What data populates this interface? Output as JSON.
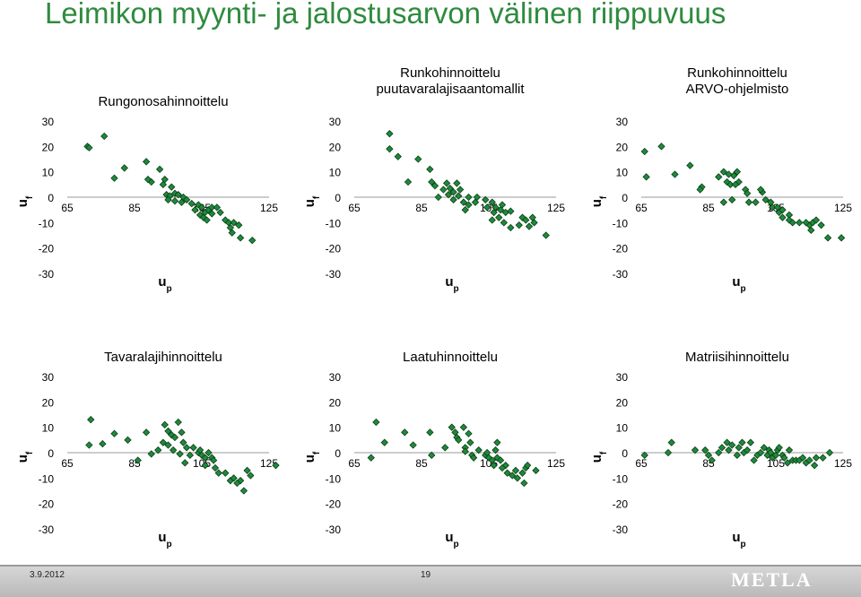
{
  "slide": {
    "title": "Leimikon myynti- ja jalostusarvon välinen riippuvuus"
  },
  "footer": {
    "date": "3.9.2012",
    "page": "19",
    "logo": "METLA"
  },
  "colors": {
    "title": "#2e8b3e",
    "marker_fill": "#1e8a3a",
    "marker_edge": "#0c3d18"
  },
  "chart_data": [
    {
      "type": "scatter",
      "title": [
        "Rungonosahinnoittelu"
      ],
      "xlabel": "u",
      "xlabel_sub": "p",
      "ylabel": "u",
      "ylabel_sub": "f",
      "xticks": [
        65,
        85,
        105,
        125
      ],
      "yticks": [
        30,
        20,
        10,
        0,
        -10,
        -20,
        -30
      ],
      "xlim": [
        65,
        125
      ],
      "ylim": [
        -30,
        30
      ],
      "grid": false,
      "points": [
        [
          71,
          20
        ],
        [
          71.5,
          19.5
        ],
        [
          76,
          24
        ],
        [
          79,
          7.5
        ],
        [
          82,
          11.5
        ],
        [
          88.5,
          14
        ],
        [
          90,
          6
        ],
        [
          89,
          7
        ],
        [
          92.5,
          11
        ],
        [
          94,
          7
        ],
        [
          93.5,
          5
        ],
        [
          96,
          4
        ],
        [
          94.5,
          1
        ],
        [
          95.5,
          0.5
        ],
        [
          97,
          1.5
        ],
        [
          98,
          1
        ],
        [
          95,
          -1
        ],
        [
          97,
          -1.5
        ],
        [
          99,
          -2
        ],
        [
          99.5,
          0
        ],
        [
          100.5,
          -1
        ],
        [
          102,
          -2.5
        ],
        [
          104,
          -3
        ],
        [
          105,
          -4
        ],
        [
          103,
          -5
        ],
        [
          106,
          -6
        ],
        [
          107,
          -5
        ],
        [
          108,
          -4
        ],
        [
          109.5,
          -4
        ],
        [
          104.5,
          -7
        ],
        [
          105.5,
          -8
        ],
        [
          106.5,
          -9
        ],
        [
          108,
          -6.5
        ],
        [
          110.5,
          -6
        ],
        [
          112,
          -9
        ],
        [
          113,
          -10
        ],
        [
          113.5,
          -12
        ],
        [
          114.5,
          -10
        ],
        [
          116,
          -11
        ],
        [
          114,
          -14
        ],
        [
          116.5,
          -16
        ],
        [
          120,
          -17
        ]
      ]
    },
    {
      "type": "scatter",
      "title": [
        "Runkohinnoittelu",
        "puutavaralajisaantomallit"
      ],
      "xlabel": "u",
      "xlabel_sub": "p",
      "ylabel": "u",
      "ylabel_sub": "f",
      "xticks": [
        65,
        85,
        105,
        125
      ],
      "yticks": [
        30,
        20,
        10,
        0,
        -10,
        -20,
        -30
      ],
      "xlim": [
        65,
        125
      ],
      "ylim": [
        -30,
        30
      ],
      "grid": false,
      "points": [
        [
          75.5,
          25
        ],
        [
          75.5,
          19
        ],
        [
          78,
          16
        ],
        [
          81,
          6
        ],
        [
          84,
          15
        ],
        [
          87.5,
          11
        ],
        [
          88,
          6
        ],
        [
          89,
          4.5
        ],
        [
          90,
          0
        ],
        [
          91.5,
          3
        ],
        [
          92.5,
          5.5
        ],
        [
          93.5,
          3.5
        ],
        [
          94.5,
          2
        ],
        [
          93,
          1
        ],
        [
          96,
          0.5
        ],
        [
          94.5,
          -1
        ],
        [
          95.5,
          5.5
        ],
        [
          96.5,
          3
        ],
        [
          97.5,
          -2
        ],
        [
          99,
          -3
        ],
        [
          99,
          0
        ],
        [
          98,
          -5
        ],
        [
          101,
          -2
        ],
        [
          101.5,
          0
        ],
        [
          104,
          -1
        ],
        [
          104.5,
          -4
        ],
        [
          106,
          -2
        ],
        [
          107,
          -4
        ],
        [
          106.5,
          -6
        ],
        [
          108,
          -8
        ],
        [
          108.5,
          -5
        ],
        [
          109,
          -3
        ],
        [
          110,
          -6
        ],
        [
          111.5,
          -5.5
        ],
        [
          109.5,
          -10
        ],
        [
          106,
          -9
        ],
        [
          111.5,
          -12
        ],
        [
          115,
          -8
        ],
        [
          116,
          -9
        ],
        [
          117,
          -11.5
        ],
        [
          118.5,
          -10
        ],
        [
          118,
          -8
        ],
        [
          114,
          -11
        ],
        [
          122,
          -15
        ]
      ]
    },
    {
      "type": "scatter",
      "title": [
        "Runkohinnoittelu",
        "ARVO-ohjelmisto"
      ],
      "xlabel": "u",
      "xlabel_sub": "p",
      "ylabel": "u",
      "ylabel_sub": "f",
      "xticks": [
        65,
        85,
        105,
        125
      ],
      "yticks": [
        30,
        20,
        10,
        0,
        -10,
        -20,
        -30
      ],
      "xlim": [
        65,
        125
      ],
      "ylim": [
        -30,
        30
      ],
      "grid": false,
      "points": [
        [
          66,
          18
        ],
        [
          66.5,
          8
        ],
        [
          71,
          20
        ],
        [
          75,
          9
        ],
        [
          79.5,
          12.5
        ],
        [
          83,
          4
        ],
        [
          82.5,
          3
        ],
        [
          88,
          8
        ],
        [
          89.5,
          10
        ],
        [
          90.5,
          6
        ],
        [
          91.5,
          5
        ],
        [
          92.5,
          8.5
        ],
        [
          93.5,
          10
        ],
        [
          91,
          9
        ],
        [
          94,
          6
        ],
        [
          93,
          5
        ],
        [
          96,
          3
        ],
        [
          96.5,
          1.5
        ],
        [
          99,
          -2
        ],
        [
          97,
          -2
        ],
        [
          89.5,
          -2
        ],
        [
          92,
          -1
        ],
        [
          101,
          2
        ],
        [
          102,
          -1
        ],
        [
          100.5,
          3
        ],
        [
          103.5,
          -2
        ],
        [
          104,
          -4
        ],
        [
          105.5,
          -4
        ],
        [
          106,
          -6
        ],
        [
          107,
          -5
        ],
        [
          107,
          -8
        ],
        [
          109,
          -7
        ],
        [
          109,
          -9
        ],
        [
          110,
          -10
        ],
        [
          112,
          -10
        ],
        [
          115,
          -11
        ],
        [
          114,
          -10
        ],
        [
          115.5,
          -13
        ],
        [
          116,
          -10
        ],
        [
          117,
          -9
        ],
        [
          118.5,
          -11
        ],
        [
          120.5,
          -16
        ],
        [
          124.5,
          -16
        ]
      ]
    },
    {
      "type": "scatter",
      "title": [
        "Tavaralajihinnoittelu"
      ],
      "xlabel": "u",
      "xlabel_sub": "p",
      "ylabel": "u",
      "ylabel_sub": "f",
      "xticks": [
        65,
        85,
        105,
        125
      ],
      "yticks": [
        30,
        20,
        10,
        0,
        -10,
        -20,
        -30
      ],
      "xlim": [
        65,
        125
      ],
      "ylim": [
        -30,
        30
      ],
      "grid": false,
      "points": [
        [
          72,
          13
        ],
        [
          71.5,
          3
        ],
        [
          75.5,
          3.5
        ],
        [
          79,
          7.5
        ],
        [
          83,
          5
        ],
        [
          86,
          -3
        ],
        [
          88.5,
          8
        ],
        [
          90,
          -0.5
        ],
        [
          92,
          1
        ],
        [
          94,
          11
        ],
        [
          93.5,
          4
        ],
        [
          95,
          8.5
        ],
        [
          96,
          7
        ],
        [
          97,
          6
        ],
        [
          98,
          12
        ],
        [
          99,
          8
        ],
        [
          99.5,
          4
        ],
        [
          100.5,
          2
        ],
        [
          101.5,
          -1
        ],
        [
          100,
          -4
        ],
        [
          95,
          3
        ],
        [
          96.5,
          1
        ],
        [
          98.5,
          -0.5
        ],
        [
          102.5,
          2
        ],
        [
          104,
          0
        ],
        [
          104.5,
          1
        ],
        [
          105,
          -1
        ],
        [
          106,
          -2
        ],
        [
          107,
          0
        ],
        [
          106,
          -5
        ],
        [
          108,
          -2
        ],
        [
          108.5,
          -3
        ],
        [
          109,
          -6
        ],
        [
          110,
          -8
        ],
        [
          112,
          -8
        ],
        [
          113.5,
          -11
        ],
        [
          114.5,
          -10
        ],
        [
          116.5,
          -11
        ],
        [
          115.5,
          -12
        ],
        [
          117.5,
          -15
        ],
        [
          119.5,
          -9
        ],
        [
          118.5,
          -7
        ],
        [
          127,
          -5
        ]
      ]
    },
    {
      "type": "scatter",
      "title": [
        "Laatuhinnoittelu"
      ],
      "xlabel": "u",
      "xlabel_sub": "p",
      "ylabel": "u",
      "ylabel_sub": "f",
      "xticks": [
        65,
        85,
        105,
        125
      ],
      "yticks": [
        30,
        20,
        10,
        0,
        -10,
        -20,
        -30
      ],
      "xlim": [
        65,
        125
      ],
      "ylim": [
        -30,
        30
      ],
      "grid": false,
      "points": [
        [
          70,
          -2
        ],
        [
          71.5,
          12
        ],
        [
          74,
          4
        ],
        [
          80,
          8
        ],
        [
          82.5,
          3
        ],
        [
          87.5,
          8
        ],
        [
          88,
          -1
        ],
        [
          92,
          2
        ],
        [
          94,
          10
        ],
        [
          95,
          8
        ],
        [
          95.5,
          6
        ],
        [
          96,
          5
        ],
        [
          97.5,
          10
        ],
        [
          98,
          2
        ],
        [
          99,
          7.5
        ],
        [
          99.5,
          4
        ],
        [
          98,
          0.5
        ],
        [
          100,
          -1
        ],
        [
          100.5,
          -2
        ],
        [
          102,
          1
        ],
        [
          104,
          -1
        ],
        [
          104.5,
          0
        ],
        [
          105,
          -2
        ],
        [
          106,
          -3
        ],
        [
          106.5,
          -5
        ],
        [
          107.5,
          -2
        ],
        [
          107,
          1
        ],
        [
          107.5,
          4
        ],
        [
          108.5,
          -3
        ],
        [
          110,
          -5
        ],
        [
          109,
          -6
        ],
        [
          110.5,
          -8
        ],
        [
          112,
          -9
        ],
        [
          113,
          -7
        ],
        [
          113.5,
          -10
        ],
        [
          115,
          -8
        ],
        [
          116,
          -6
        ],
        [
          115.5,
          -12
        ],
        [
          116.5,
          -5
        ],
        [
          119,
          -7
        ]
      ]
    },
    {
      "type": "scatter",
      "title": [
        "Matriisihinnoittelu"
      ],
      "xlabel": "u",
      "xlabel_sub": "p",
      "ylabel": "u",
      "ylabel_sub": "f",
      "xticks": [
        65,
        85,
        105,
        125
      ],
      "yticks": [
        30,
        20,
        10,
        0,
        -10,
        -20,
        -30
      ],
      "xlim": [
        65,
        125
      ],
      "ylim": [
        -30,
        30
      ],
      "grid": false,
      "points": [
        [
          66,
          -1
        ],
        [
          74,
          4
        ],
        [
          73,
          0
        ],
        [
          81,
          1
        ],
        [
          84,
          1
        ],
        [
          85,
          -1
        ],
        [
          86,
          -3
        ],
        [
          88,
          0
        ],
        [
          89,
          2
        ],
        [
          90.5,
          4
        ],
        [
          91,
          1
        ],
        [
          92,
          3
        ],
        [
          93.5,
          -1
        ],
        [
          94,
          2
        ],
        [
          95,
          4
        ],
        [
          95.5,
          0
        ],
        [
          96.5,
          1
        ],
        [
          97.5,
          4
        ],
        [
          98.5,
          -3
        ],
        [
          99.5,
          -1
        ],
        [
          100.5,
          0
        ],
        [
          101.5,
          2
        ],
        [
          102.5,
          -1
        ],
        [
          103,
          1
        ],
        [
          103.5,
          0
        ],
        [
          104,
          -2
        ],
        [
          105,
          -1
        ],
        [
          105.5,
          1
        ],
        [
          106,
          2
        ],
        [
          107,
          -1
        ],
        [
          107.5,
          -2
        ],
        [
          108.5,
          -4
        ],
        [
          109,
          1
        ],
        [
          110,
          -3
        ],
        [
          111,
          -3
        ],
        [
          112,
          -3
        ],
        [
          113,
          -2
        ],
        [
          114,
          -4
        ],
        [
          115,
          -3
        ],
        [
          117,
          -2
        ],
        [
          119,
          -2
        ],
        [
          121,
          0
        ],
        [
          116.5,
          -5
        ]
      ]
    }
  ]
}
